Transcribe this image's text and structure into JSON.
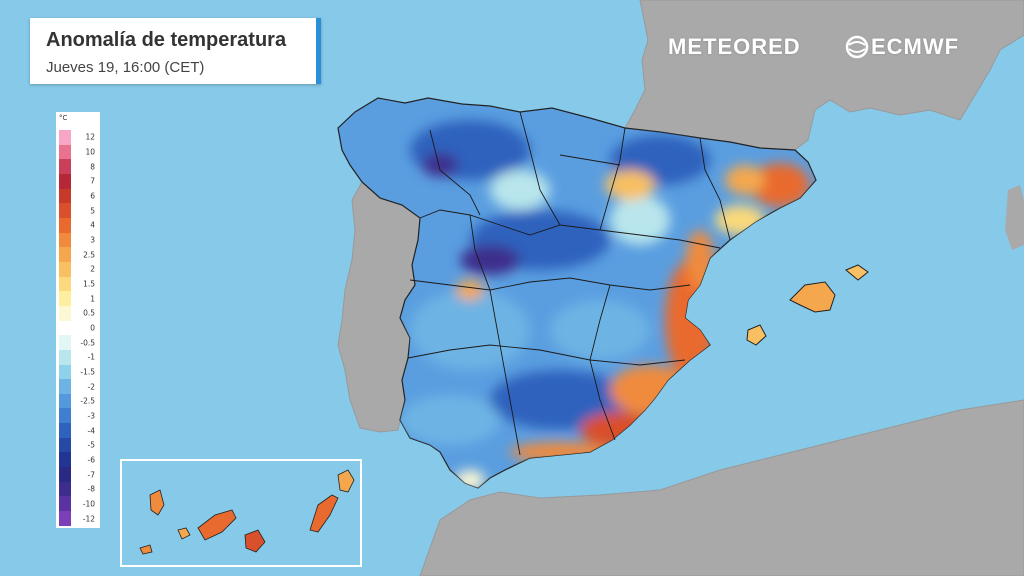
{
  "header": {
    "title": "Anomalía de temperatura",
    "subtitle": "Jueves 19, 16:00 (CET)"
  },
  "branding": {
    "meteored": "METEORED",
    "ecmwf": "ECMWF"
  },
  "legend": {
    "unit": "°C",
    "levels": [
      "12",
      "10",
      "8",
      "7",
      "6",
      "5",
      "4",
      "3",
      "2.5",
      "2",
      "1.5",
      "1",
      "0.5",
      "0",
      "-0.5",
      "-1",
      "-1.5",
      "-2",
      "-2.5",
      "-3",
      "-4",
      "-5",
      "-6",
      "-7",
      "-8",
      "-10",
      "-12"
    ],
    "colors": [
      "#f7a6c6",
      "#e8728f",
      "#c8405a",
      "#b52838",
      "#c73a2a",
      "#d9502c",
      "#e96a2e",
      "#f08a3c",
      "#f5a74e",
      "#f8c062",
      "#fbd97c",
      "#fdeea0",
      "#fdf7d4",
      "#ffffff",
      "#e3f6f6",
      "#b9e6ec",
      "#8fd0ea",
      "#6db4e4",
      "#5499dc",
      "#3f7ed0",
      "#2f62bd",
      "#2649a6",
      "#213592",
      "#2a2a84",
      "#3d2d8c",
      "#5a33a0",
      "#7d3fb8"
    ]
  },
  "colors": {
    "sea": "#86c9e8",
    "land": "#a9a9a9",
    "cold": "#3f7ed0",
    "warm": "#e96a2e"
  },
  "icons": {
    "ecmwf_logo": "ecmwf-logo-icon",
    "meteored_logo": "meteored-logo-icon"
  }
}
